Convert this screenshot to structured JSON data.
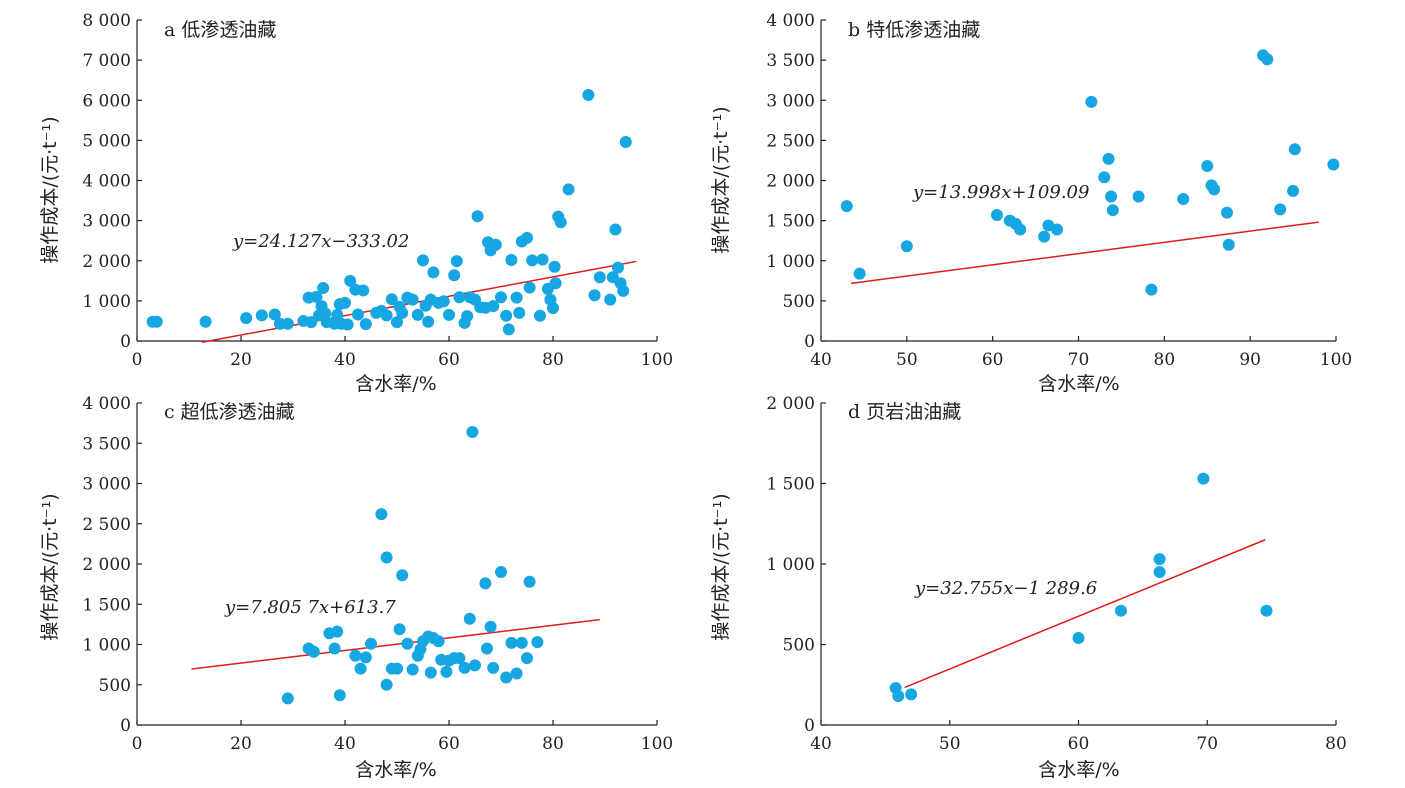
{
  "chart_data": [
    {
      "type": "scatter",
      "title": "a 低渗透油藏",
      "xlabel": "含水率/%",
      "ylabel": "操作成本/(元·t⁻¹)",
      "xlim": [
        0,
        100
      ],
      "ylim": [
        0,
        8000
      ],
      "xticks": [
        0,
        20,
        40,
        60,
        80,
        100
      ],
      "xtick_labels": [
        "0",
        "20",
        "40",
        "60",
        "80",
        "100"
      ],
      "yticks": [
        0,
        1000,
        2000,
        3000,
        4000,
        5000,
        6000,
        7000,
        8000
      ],
      "ytick_labels": [
        "0",
        "1 000",
        "2 000",
        "3 000",
        "4 000",
        "5 000",
        "6 000",
        "7 000",
        "8 000"
      ],
      "equation": "y=24.127x−333.02",
      "fit": {
        "slope": 24.127,
        "intercept": -333.02,
        "x_range": [
          12.5,
          96
        ]
      },
      "points": [
        [
          3,
          480
        ],
        [
          3.8,
          480
        ],
        [
          13.2,
          480
        ],
        [
          21,
          570
        ],
        [
          24,
          640
        ],
        [
          26.5,
          660
        ],
        [
          27.5,
          430
        ],
        [
          29,
          430
        ],
        [
          32,
          500
        ],
        [
          33,
          1080
        ],
        [
          33.5,
          470
        ],
        [
          34.5,
          1100
        ],
        [
          35,
          640
        ],
        [
          35.5,
          870
        ],
        [
          35.8,
          1320
        ],
        [
          36.2,
          690
        ],
        [
          36.5,
          470
        ],
        [
          38,
          430
        ],
        [
          38.5,
          650
        ],
        [
          39,
          920
        ],
        [
          39.3,
          430
        ],
        [
          40,
          950
        ],
        [
          40.5,
          410
        ],
        [
          41,
          1500
        ],
        [
          42,
          1280
        ],
        [
          42.5,
          660
        ],
        [
          43.5,
          1260
        ],
        [
          44,
          420
        ],
        [
          46,
          700
        ],
        [
          47,
          750
        ],
        [
          48,
          640
        ],
        [
          49,
          1040
        ],
        [
          50,
          470
        ],
        [
          50.5,
          850
        ],
        [
          51,
          700
        ],
        [
          52,
          1080
        ],
        [
          53,
          1030
        ],
        [
          54,
          650
        ],
        [
          55,
          2010
        ],
        [
          55.5,
          880
        ],
        [
          56,
          480
        ],
        [
          56.5,
          1030
        ],
        [
          57,
          1710
        ],
        [
          58,
          950
        ],
        [
          59,
          990
        ],
        [
          60,
          650
        ],
        [
          61,
          1640
        ],
        [
          61.5,
          1990
        ],
        [
          62,
          1090
        ],
        [
          63,
          450
        ],
        [
          63.5,
          620
        ],
        [
          64,
          1090
        ],
        [
          65,
          1030
        ],
        [
          65.5,
          3110
        ],
        [
          66,
          840
        ],
        [
          67,
          830
        ],
        [
          67.5,
          2460
        ],
        [
          68,
          2260
        ],
        [
          68.5,
          870
        ],
        [
          69,
          2400
        ],
        [
          70,
          1090
        ],
        [
          71,
          630
        ],
        [
          71.5,
          290
        ],
        [
          72,
          2020
        ],
        [
          73,
          1080
        ],
        [
          73.5,
          700
        ],
        [
          74,
          2480
        ],
        [
          75,
          2570
        ],
        [
          75.5,
          1330
        ],
        [
          76,
          2010
        ],
        [
          77.5,
          630
        ],
        [
          78,
          2030
        ],
        [
          79,
          1300
        ],
        [
          79.5,
          1030
        ],
        [
          80,
          820
        ],
        [
          80.3,
          1850
        ],
        [
          80.5,
          1440
        ],
        [
          81,
          3100
        ],
        [
          81.5,
          2960
        ],
        [
          83,
          3780
        ],
        [
          86.8,
          6130
        ],
        [
          88,
          1140
        ],
        [
          89,
          1590
        ],
        [
          91,
          1030
        ],
        [
          91.5,
          1590
        ],
        [
          92,
          2780
        ],
        [
          92.5,
          1830
        ],
        [
          93,
          1440
        ],
        [
          93.5,
          1250
        ],
        [
          94,
          4960
        ]
      ]
    },
    {
      "type": "scatter",
      "title": "b 特低渗透油藏",
      "xlabel": "含水率/%",
      "ylabel": "操作成本/(元·t⁻¹)",
      "xlim": [
        40,
        100
      ],
      "ylim": [
        0,
        4000
      ],
      "xticks": [
        40,
        50,
        60,
        70,
        80,
        90,
        100
      ],
      "xtick_labels": [
        "40",
        "50",
        "60",
        "70",
        "80",
        "90",
        "100"
      ],
      "yticks": [
        0,
        500,
        1000,
        1500,
        2000,
        2500,
        3000,
        3500,
        4000
      ],
      "ytick_labels": [
        "0",
        "500",
        "1 000",
        "1 500",
        "2 000",
        "2 500",
        "3 000",
        "3 500",
        "4 000"
      ],
      "equation": "y=13.998x+109.09",
      "fit": {
        "slope": 13.998,
        "intercept": 109.09,
        "x_range": [
          43.5,
          98
        ]
      },
      "points": [
        [
          43,
          1680
        ],
        [
          44.5,
          840
        ],
        [
          50,
          1180
        ],
        [
          60.5,
          1570
        ],
        [
          62,
          1500
        ],
        [
          62.7,
          1460
        ],
        [
          63.2,
          1390
        ],
        [
          66,
          1300
        ],
        [
          66.5,
          1440
        ],
        [
          67.5,
          1390
        ],
        [
          71.5,
          2980
        ],
        [
          73,
          2040
        ],
        [
          73.5,
          2270
        ],
        [
          73.8,
          1800
        ],
        [
          74,
          1630
        ],
        [
          77,
          1800
        ],
        [
          78.5,
          640
        ],
        [
          82.2,
          1770
        ],
        [
          85,
          2180
        ],
        [
          85.5,
          1940
        ],
        [
          85.8,
          1890
        ],
        [
          87.3,
          1600
        ],
        [
          87.5,
          1200
        ],
        [
          91.5,
          3560
        ],
        [
          92,
          3510
        ],
        [
          93.5,
          1640
        ],
        [
          95,
          1870
        ],
        [
          95.2,
          2390
        ],
        [
          99.7,
          2200
        ]
      ]
    },
    {
      "type": "scatter",
      "title": "c 超低渗透油藏",
      "xlabel": "含水率/%",
      "ylabel": "操作成本/(元·t⁻¹)",
      "xlim": [
        0,
        100
      ],
      "ylim": [
        0,
        4000
      ],
      "xticks": [
        0,
        20,
        40,
        60,
        80,
        100
      ],
      "xtick_labels": [
        "0",
        "20",
        "40",
        "60",
        "80",
        "100"
      ],
      "yticks": [
        0,
        500,
        1000,
        1500,
        2000,
        2500,
        3000,
        3500,
        4000
      ],
      "ytick_labels": [
        "0",
        "500",
        "1 000",
        "1 500",
        "2 000",
        "2 500",
        "3 000",
        "3 500",
        "4 000"
      ],
      "equation": "y=7.805 7x+613.7",
      "fit": {
        "slope": 7.8057,
        "intercept": 613.7,
        "x_range": [
          10.5,
          89
        ]
      },
      "points": [
        [
          29,
          330
        ],
        [
          33,
          950
        ],
        [
          34,
          910
        ],
        [
          37,
          1140
        ],
        [
          38,
          950
        ],
        [
          38.5,
          1160
        ],
        [
          39,
          370
        ],
        [
          42,
          860
        ],
        [
          43,
          700
        ],
        [
          44,
          840
        ],
        [
          45,
          1010
        ],
        [
          47,
          2620
        ],
        [
          48,
          2080
        ],
        [
          48,
          500
        ],
        [
          49,
          700
        ],
        [
          50,
          700
        ],
        [
          50.5,
          1190
        ],
        [
          51,
          1860
        ],
        [
          52,
          1010
        ],
        [
          53,
          690
        ],
        [
          54,
          860
        ],
        [
          54.5,
          940
        ],
        [
          55,
          1040
        ],
        [
          56,
          1100
        ],
        [
          56.5,
          650
        ],
        [
          57,
          1080
        ],
        [
          58,
          1040
        ],
        [
          58.5,
          810
        ],
        [
          59.5,
          660
        ],
        [
          60,
          800
        ],
        [
          61,
          830
        ],
        [
          62,
          830
        ],
        [
          63,
          710
        ],
        [
          64,
          1320
        ],
        [
          64.5,
          3640
        ],
        [
          65,
          740
        ],
        [
          67,
          1760
        ],
        [
          67.3,
          950
        ],
        [
          68,
          1220
        ],
        [
          68.5,
          710
        ],
        [
          70,
          1900
        ],
        [
          71,
          590
        ],
        [
          72,
          1020
        ],
        [
          73,
          640
        ],
        [
          74,
          1020
        ],
        [
          75,
          830
        ],
        [
          75.5,
          1780
        ],
        [
          77,
          1030
        ]
      ]
    },
    {
      "type": "scatter",
      "title": "d 页岩油油藏",
      "xlabel": "含水率/%",
      "ylabel": "操作成本/(元·t⁻¹)",
      "xlim": [
        40,
        80
      ],
      "ylim": [
        0,
        2000
      ],
      "xticks": [
        40,
        50,
        60,
        70,
        80
      ],
      "xtick_labels": [
        "40",
        "50",
        "60",
        "70",
        "80"
      ],
      "yticks": [
        0,
        500,
        1000,
        1500,
        2000
      ],
      "ytick_labels": [
        "0",
        "500",
        "1 000",
        "1 500",
        "2 000"
      ],
      "equation": "y=32.755x−1 289.6",
      "fit": {
        "slope": 32.755,
        "intercept": -1289.6,
        "x_range": [
          46.5,
          74.5
        ]
      },
      "points": [
        [
          45.8,
          230
        ],
        [
          46,
          180
        ],
        [
          47,
          190
        ],
        [
          60,
          540
        ],
        [
          63.3,
          710
        ],
        [
          66.3,
          1030
        ],
        [
          66.3,
          950
        ],
        [
          69.7,
          1530
        ],
        [
          74.6,
          710
        ]
      ]
    }
  ]
}
